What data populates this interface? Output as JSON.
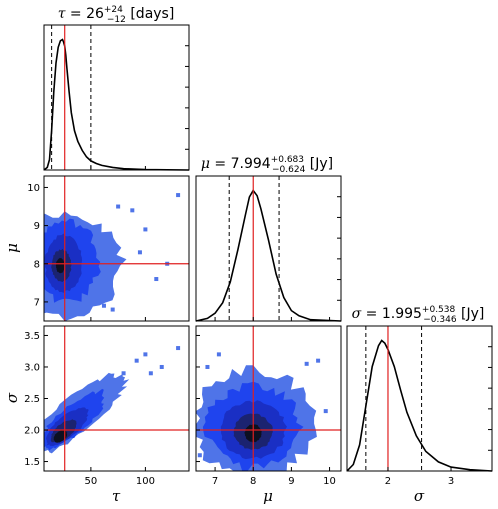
{
  "chart_data": {
    "type": "corner",
    "parameters": [
      {
        "key": "tau",
        "symbol": "τ",
        "title": {
          "symbol": "τ",
          "eq": " = 26",
          "sup": "+24",
          "sub": "−12",
          "unit": " [days]"
        },
        "range": [
          7,
          140
        ],
        "ticks": [
          50,
          100
        ],
        "tick_labels": [
          "50",
          "100"
        ],
        "truth": 26,
        "quantiles": [
          14,
          50
        ],
        "marginal": {
          "x": [
            7,
            10,
            12,
            14,
            16,
            18,
            20,
            22,
            24,
            25,
            26,
            27,
            28,
            30,
            32,
            35,
            38,
            42,
            46,
            50,
            55,
            60,
            70,
            80,
            100,
            140
          ],
          "y": [
            0.0,
            0.02,
            0.08,
            0.3,
            0.6,
            0.82,
            0.94,
            0.99,
            1.0,
            0.98,
            0.95,
            0.88,
            0.78,
            0.6,
            0.44,
            0.3,
            0.22,
            0.15,
            0.1,
            0.07,
            0.05,
            0.035,
            0.02,
            0.01,
            0.003,
            0.0
          ]
        }
      },
      {
        "key": "mu",
        "symbol": "μ",
        "title": {
          "symbol": "μ",
          "eq": " = 7.994",
          "sup": "+0.683",
          "sub": "−0.624",
          "unit": " [Jy]"
        },
        "range": [
          6.5,
          10.3
        ],
        "ticks": [
          7,
          8,
          9,
          10
        ],
        "tick_labels": [
          "7",
          "8",
          "9",
          "10"
        ],
        "truth": 8.0,
        "quantiles": [
          7.37,
          8.677
        ],
        "marginal": {
          "x": [
            6.5,
            6.8,
            7.0,
            7.2,
            7.4,
            7.6,
            7.8,
            7.9,
            8.0,
            8.1,
            8.2,
            8.4,
            8.6,
            8.8,
            9.0,
            9.2,
            9.5,
            10.3
          ],
          "y": [
            0.0,
            0.02,
            0.06,
            0.14,
            0.3,
            0.55,
            0.82,
            0.95,
            1.0,
            0.96,
            0.86,
            0.62,
            0.36,
            0.18,
            0.08,
            0.04,
            0.01,
            0.0
          ]
        }
      },
      {
        "key": "sigma",
        "symbol": "σ",
        "title": {
          "symbol": "σ",
          "eq": " = 1.995",
          "sup": "+0.538",
          "sub": "−0.346",
          "unit": " [Jy]"
        },
        "range": [
          1.35,
          3.65
        ],
        "ticks": [
          1.5,
          2.0,
          2.5,
          3.0,
          3.5
        ],
        "tick_labels": [
          "1.5",
          "2.0",
          "2.5",
          "3.0",
          "3.5"
        ],
        "truth": 2.0,
        "quantiles": [
          1.649,
          2.533
        ],
        "marginal": {
          "x": [
            1.35,
            1.45,
            1.55,
            1.65,
            1.75,
            1.85,
            1.9,
            1.95,
            2.0,
            2.1,
            2.2,
            2.3,
            2.45,
            2.6,
            2.8,
            3.0,
            3.3,
            3.65
          ],
          "y": [
            0.0,
            0.05,
            0.2,
            0.5,
            0.8,
            0.96,
            1.0,
            0.98,
            0.93,
            0.8,
            0.62,
            0.45,
            0.27,
            0.15,
            0.07,
            0.03,
            0.01,
            0.0
          ]
        }
      }
    ],
    "bottom_tick_labels": {
      "tau": [
        "50",
        "100"
      ],
      "mu": [
        "7",
        "8",
        "9",
        "10"
      ],
      "sigma": [
        "2",
        "3"
      ]
    },
    "bottom_ticks": {
      "tau": [
        50,
        100
      ],
      "mu": [
        7,
        8,
        9,
        10
      ],
      "sigma": [
        2,
        3
      ]
    },
    "joint": [
      {
        "x": "tau",
        "y": "mu",
        "blobs": [
          {
            "cx": 26,
            "cy": 7.95,
            "rx": 52,
            "ry": 1.35,
            "level": 0
          },
          {
            "cx": 27,
            "cy": 8.05,
            "rx": 30,
            "ry": 1.05,
            "level": 1
          },
          {
            "cx": 25,
            "cy": 8.0,
            "rx": 17,
            "ry": 0.75,
            "level": 2
          },
          {
            "cx": 23,
            "cy": 7.95,
            "rx": 9,
            "ry": 0.42,
            "level": 3
          },
          {
            "cx": 22,
            "cy": 7.95,
            "rx": 4,
            "ry": 0.2,
            "level": 4
          }
        ],
        "scatter": [
          [
            100,
            8.9
          ],
          [
            110,
            7.6
          ],
          [
            130,
            9.8
          ],
          [
            88,
            9.4
          ],
          [
            70,
            6.8
          ],
          [
            95,
            8.3
          ],
          [
            75,
            9.5
          ],
          [
            120,
            8.0
          ],
          [
            62,
            6.9
          ]
        ]
      },
      {
        "x": "tau",
        "y": "sigma",
        "blobs": [
          {
            "cx": 38,
            "cy": 2.25,
            "rx": 55,
            "ry": 0.28,
            "angle": -40,
            "level": 0
          },
          {
            "cx": 33,
            "cy": 2.15,
            "rx": 38,
            "ry": 0.22,
            "angle": -40,
            "level": 1
          },
          {
            "cx": 28,
            "cy": 2.05,
            "rx": 24,
            "ry": 0.17,
            "angle": -40,
            "level": 2
          },
          {
            "cx": 25,
            "cy": 1.98,
            "rx": 14,
            "ry": 0.12,
            "angle": -40,
            "level": 3
          },
          {
            "cx": 22,
            "cy": 1.9,
            "rx": 7,
            "ry": 0.08,
            "angle": -40,
            "level": 4
          }
        ],
        "scatter": [
          [
            100,
            3.2
          ],
          [
            130,
            3.3
          ],
          [
            115,
            3.0
          ],
          [
            92,
            3.1
          ],
          [
            80,
            2.9
          ],
          [
            105,
            2.9
          ]
        ]
      },
      {
        "x": "mu",
        "y": "sigma",
        "blobs": [
          {
            "cx": 8.0,
            "cy": 2.1,
            "rx": 1.55,
            "ry": 0.85,
            "level": 0
          },
          {
            "cx": 8.0,
            "cy": 2.05,
            "rx": 1.2,
            "ry": 0.65,
            "level": 1
          },
          {
            "cx": 8.0,
            "cy": 2.0,
            "rx": 0.85,
            "ry": 0.45,
            "level": 2
          },
          {
            "cx": 8.0,
            "cy": 1.97,
            "rx": 0.5,
            "ry": 0.28,
            "level": 3
          },
          {
            "cx": 8.0,
            "cy": 1.95,
            "rx": 0.22,
            "ry": 0.14,
            "level": 4
          }
        ],
        "scatter": [
          [
            6.8,
            3.0
          ],
          [
            9.7,
            3.1
          ],
          [
            9.9,
            2.3
          ],
          [
            6.6,
            1.6
          ],
          [
            7.1,
            3.2
          ],
          [
            9.4,
            3.05
          ]
        ]
      }
    ],
    "colors": {
      "levels": [
        "#4f74e8",
        "#1f44ee",
        "#1a2fc4",
        "#1b2370",
        "#0d1020"
      ],
      "truth_line": "#e02020",
      "marginal_line": "#000000",
      "quantile_line": "#000000"
    },
    "grid": false,
    "legend": "none"
  }
}
